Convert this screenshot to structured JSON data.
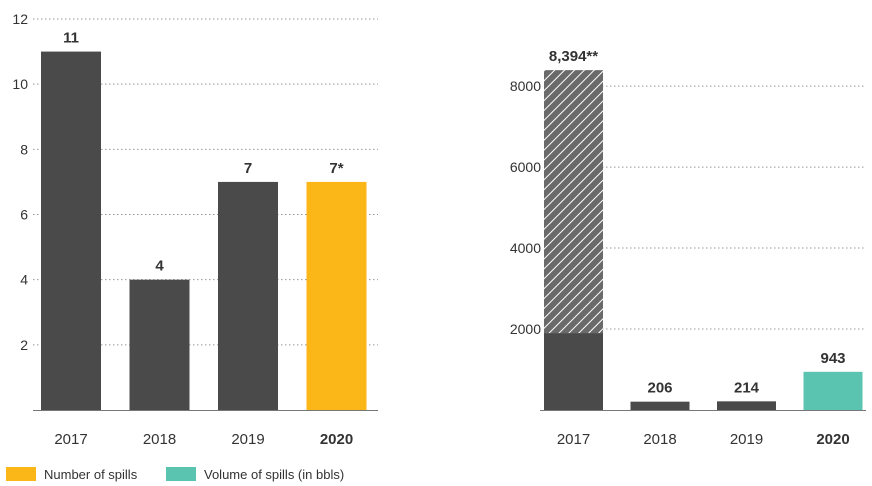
{
  "colors": {
    "bar": "#4a4a4a",
    "spills_highlight": "#fbb618",
    "volume_highlight": "#5bc4b1",
    "grid": "#999999",
    "hatch": "#ffffff"
  },
  "legend": [
    {
      "label": "Number of spills",
      "color": "#fbb618"
    },
    {
      "label": "Volume of spills (in bbls)",
      "color": "#5bc4b1"
    }
  ],
  "chart_data": [
    {
      "type": "bar",
      "categories": [
        "2017",
        "2018",
        "2019",
        "2020"
      ],
      "values": [
        11,
        4,
        7,
        7
      ],
      "data_labels": [
        "11",
        "4",
        "7",
        "7*"
      ],
      "highlight_index": 3,
      "ylim": [
        0,
        12
      ],
      "yticks": [
        2,
        4,
        6,
        8,
        10,
        12
      ],
      "grid": true,
      "title": "",
      "xlabel": "",
      "ylabel": ""
    },
    {
      "type": "bar",
      "categories": [
        "2017",
        "2018",
        "2019",
        "2020"
      ],
      "values": [
        8394,
        206,
        214,
        943
      ],
      "solid_portion": [
        1900,
        206,
        214,
        943
      ],
      "hatched_portion_indices": [
        0
      ],
      "data_labels": [
        "8,394**",
        "206",
        "214",
        "943"
      ],
      "highlight_index": 3,
      "ylim": [
        0,
        9200
      ],
      "yticks": [
        2000,
        4000,
        6000,
        8000
      ],
      "grid": true,
      "title": "",
      "xlabel": "",
      "ylabel": ""
    }
  ]
}
